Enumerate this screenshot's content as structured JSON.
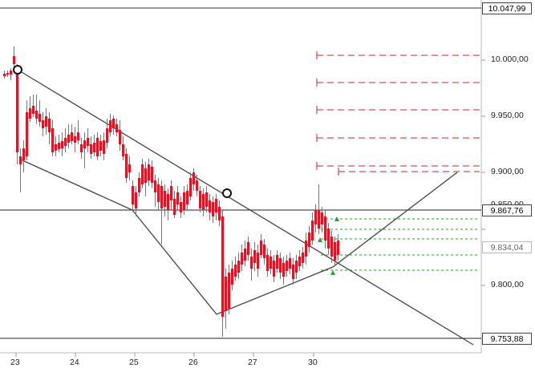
{
  "price_axis": {
    "ticks": [
      "10.000,00",
      "9.950,00",
      "9.900,00",
      "9.850,00",
      "9.800,00"
    ],
    "labels": {
      "high": "10.047,99",
      "current": "9.867,76",
      "last": "9.834,04",
      "low": "9.753,88"
    }
  },
  "date_axis": {
    "labels": [
      "23",
      "24",
      "25",
      "26",
      "27",
      "30"
    ]
  },
  "colors": {
    "up": "#2e8b22",
    "down": "#d11a2a",
    "trendline": "#444444",
    "target_red": "#d0202a",
    "target_green": "#2e9e2e"
  }
}
